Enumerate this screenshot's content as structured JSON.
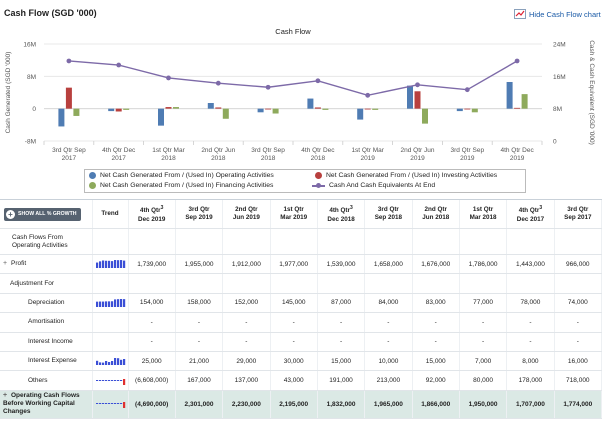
{
  "header": {
    "title": "Cash Flow (SGD '000)",
    "hide_chart_label": "Hide Cash Flow chart"
  },
  "chart_data": {
    "type": "bar",
    "title": "Cash Flow",
    "ylabel": "Cash Generated (SGD '000)",
    "y2label": "Cash & Cash Equivalent (SGD '000)",
    "ylim": [
      -8,
      16
    ],
    "y2lim": [
      0,
      24
    ],
    "yticks": [
      "16M",
      "8M",
      "0",
      "-8M"
    ],
    "y2ticks": [
      "24M",
      "16M",
      "8M",
      "0"
    ],
    "categories": [
      [
        "3rd Qtr Sep",
        "2017"
      ],
      [
        "4th Qtr Dec",
        "2017"
      ],
      [
        "1st Qtr Mar",
        "2018"
      ],
      [
        "2nd Qtr Jun",
        "2018"
      ],
      [
        "3rd Qtr Sep",
        "2018"
      ],
      [
        "4th Qtr Dec",
        "2018"
      ],
      [
        "1st Qtr Mar",
        "2019"
      ],
      [
        "2nd Qtr Jun",
        "2019"
      ],
      [
        "3rd Qtr Sep",
        "2019"
      ],
      [
        "4th Qtr Dec",
        "2019"
      ]
    ],
    "series": [
      {
        "name": "Net Cash Generated From / (Used In) Operating Activities",
        "color": "#4f7cb3",
        "axis": "left",
        "values": [
          -4.4,
          -0.6,
          -4.2,
          1.4,
          -0.9,
          2.5,
          -2.7,
          5.7,
          -0.6,
          6.6
        ]
      },
      {
        "name": "Net Cash Generated From / (Used In) Investing Activities",
        "color": "#b8403e",
        "axis": "left",
        "values": [
          5.2,
          -0.7,
          0.4,
          0.3,
          -0.2,
          0.3,
          -0.2,
          4.3,
          -0.1,
          0.2
        ]
      },
      {
        "name": "Net Cash Generated From / (Used In) Financing Activities",
        "color": "#8eaa5c",
        "axis": "left",
        "values": [
          -1.8,
          -0.3,
          0.4,
          -2.5,
          -1.2,
          -0.3,
          -0.3,
          -3.7,
          -0.9,
          3.6
        ]
      },
      {
        "name": "Cash And Cash Equivalents At End",
        "color": "#7d6aa8",
        "axis": "right",
        "type": "line",
        "values": [
          19.8,
          18.8,
          15.6,
          14.3,
          13.3,
          14.9,
          11.3,
          13.9,
          12.7,
          19.8
        ]
      }
    ],
    "legend_position": "bottom",
    "grid": true
  },
  "table": {
    "growth_button": "SHOW ALL % GROWTH",
    "trend_header": "Trend",
    "columns": [
      {
        "l1": "4th Qtr",
        "sup": "3",
        "l2": "Dec 2019"
      },
      {
        "l1": "3rd Qtr",
        "sup": "",
        "l2": "Sep 2019"
      },
      {
        "l1": "2nd Qtr",
        "sup": "",
        "l2": "Jun 2019"
      },
      {
        "l1": "1st Qtr",
        "sup": "",
        "l2": "Mar 2019"
      },
      {
        "l1": "4th Qtr",
        "sup": "3",
        "l2": "Dec 2018"
      },
      {
        "l1": "3rd Qtr",
        "sup": "",
        "l2": "Sep 2018"
      },
      {
        "l1": "2nd Qtr",
        "sup": "",
        "l2": "Jun 2018"
      },
      {
        "l1": "1st Qtr",
        "sup": "",
        "l2": "Mar 2018"
      },
      {
        "l1": "4th Qtr",
        "sup": "3",
        "l2": "Dec 2017"
      },
      {
        "l1": "3rd Qtr",
        "sup": "",
        "l2": "Sep 2017"
      }
    ],
    "rows": [
      {
        "label": "Cash Flows From Operating Activities",
        "indent": 0,
        "kind": "section",
        "values": [
          "",
          "",
          "",
          "",
          "",
          "",
          "",
          "",
          "",
          ""
        ]
      },
      {
        "label": "Profit",
        "indent": 0,
        "expander": "+",
        "trend": "bars",
        "values": [
          "1,739,000",
          "1,955,000",
          "1,912,000",
          "1,977,000",
          "1,539,000",
          "1,658,000",
          "1,676,000",
          "1,786,000",
          "1,443,000",
          "966,000"
        ]
      },
      {
        "label": "Adjustment For",
        "indent": 1,
        "kind": "section",
        "values": [
          "",
          "",
          "",
          "",
          "",
          "",
          "",
          "",
          "",
          ""
        ]
      },
      {
        "label": "Depreciation",
        "indent": 2,
        "trend": "bars",
        "values": [
          "154,000",
          "158,000",
          "152,000",
          "145,000",
          "87,000",
          "84,000",
          "83,000",
          "77,000",
          "78,000",
          "74,000"
        ]
      },
      {
        "label": "Amortisation",
        "indent": 2,
        "values": [
          "-",
          "-",
          "-",
          "-",
          "-",
          "-",
          "-",
          "-",
          "-",
          "-"
        ]
      },
      {
        "label": "Interest Income",
        "indent": 2,
        "values": [
          "-",
          "-",
          "-",
          "-",
          "-",
          "-",
          "-",
          "-",
          "-",
          "-"
        ]
      },
      {
        "label": "Interest Expense",
        "indent": 2,
        "trend": "bars-small",
        "values": [
          "25,000",
          "21,000",
          "29,000",
          "30,000",
          "15,000",
          "10,000",
          "15,000",
          "7,000",
          "8,000",
          "16,000"
        ]
      },
      {
        "label": "Others",
        "indent": 2,
        "trend": "neg",
        "values": [
          "(6,608,000)",
          "167,000",
          "137,000",
          "43,000",
          "191,000",
          "213,000",
          "92,000",
          "80,000",
          "178,000",
          "718,000"
        ]
      },
      {
        "label": "Operating Cash Flows Before Working Capital Changes",
        "indent": 0,
        "expander": "+",
        "kind": "total",
        "trend": "neg-dot",
        "values": [
          "(4,690,000)",
          "2,301,000",
          "2,230,000",
          "2,195,000",
          "1,832,000",
          "1,965,000",
          "1,866,000",
          "1,950,000",
          "1,707,000",
          "1,774,000"
        ]
      }
    ]
  }
}
